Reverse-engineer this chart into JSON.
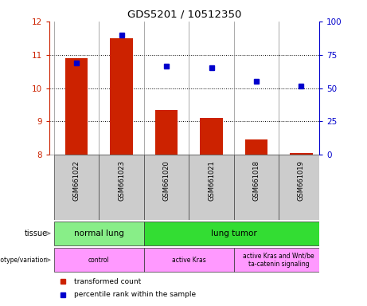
{
  "title": "GDS5201 / 10512350",
  "samples": [
    "GSM661022",
    "GSM661023",
    "GSM661020",
    "GSM661021",
    "GSM661018",
    "GSM661019"
  ],
  "red_values": [
    10.9,
    11.5,
    9.35,
    9.1,
    8.45,
    8.05
  ],
  "blue_values": [
    10.75,
    11.6,
    10.65,
    10.6,
    10.2,
    10.05
  ],
  "ylim_left": [
    8,
    12
  ],
  "ylim_right": [
    0,
    100
  ],
  "yticks_left": [
    8,
    9,
    10,
    11,
    12
  ],
  "yticks_right": [
    0,
    25,
    50,
    75,
    100
  ],
  "red_color": "#CC2200",
  "blue_color": "#0000CC",
  "bar_width": 0.5,
  "legend_red": "transformed count",
  "legend_blue": "percentile rank within the sample",
  "left_label_color": "#CC2200",
  "right_label_color": "#0000CC",
  "tissue_data": [
    {
      "text": "normal lung",
      "x0": -0.5,
      "x1": 1.5,
      "color": "#88EE88"
    },
    {
      "text": "lung tumor",
      "x0": 1.5,
      "x1": 5.5,
      "color": "#33DD33"
    }
  ],
  "geno_data": [
    {
      "text": "control",
      "x0": -0.5,
      "x1": 1.5,
      "color": "#FF99FF"
    },
    {
      "text": "active Kras",
      "x0": 1.5,
      "x1": 3.5,
      "color": "#FF99FF"
    },
    {
      "text": "active Kras and Wnt/be\nta-catenin signaling",
      "x0": 3.5,
      "x1": 5.5,
      "color": "#FF99FF"
    }
  ],
  "sample_box_color": "#CCCCCC",
  "xlim": [
    -0.6,
    5.4
  ]
}
